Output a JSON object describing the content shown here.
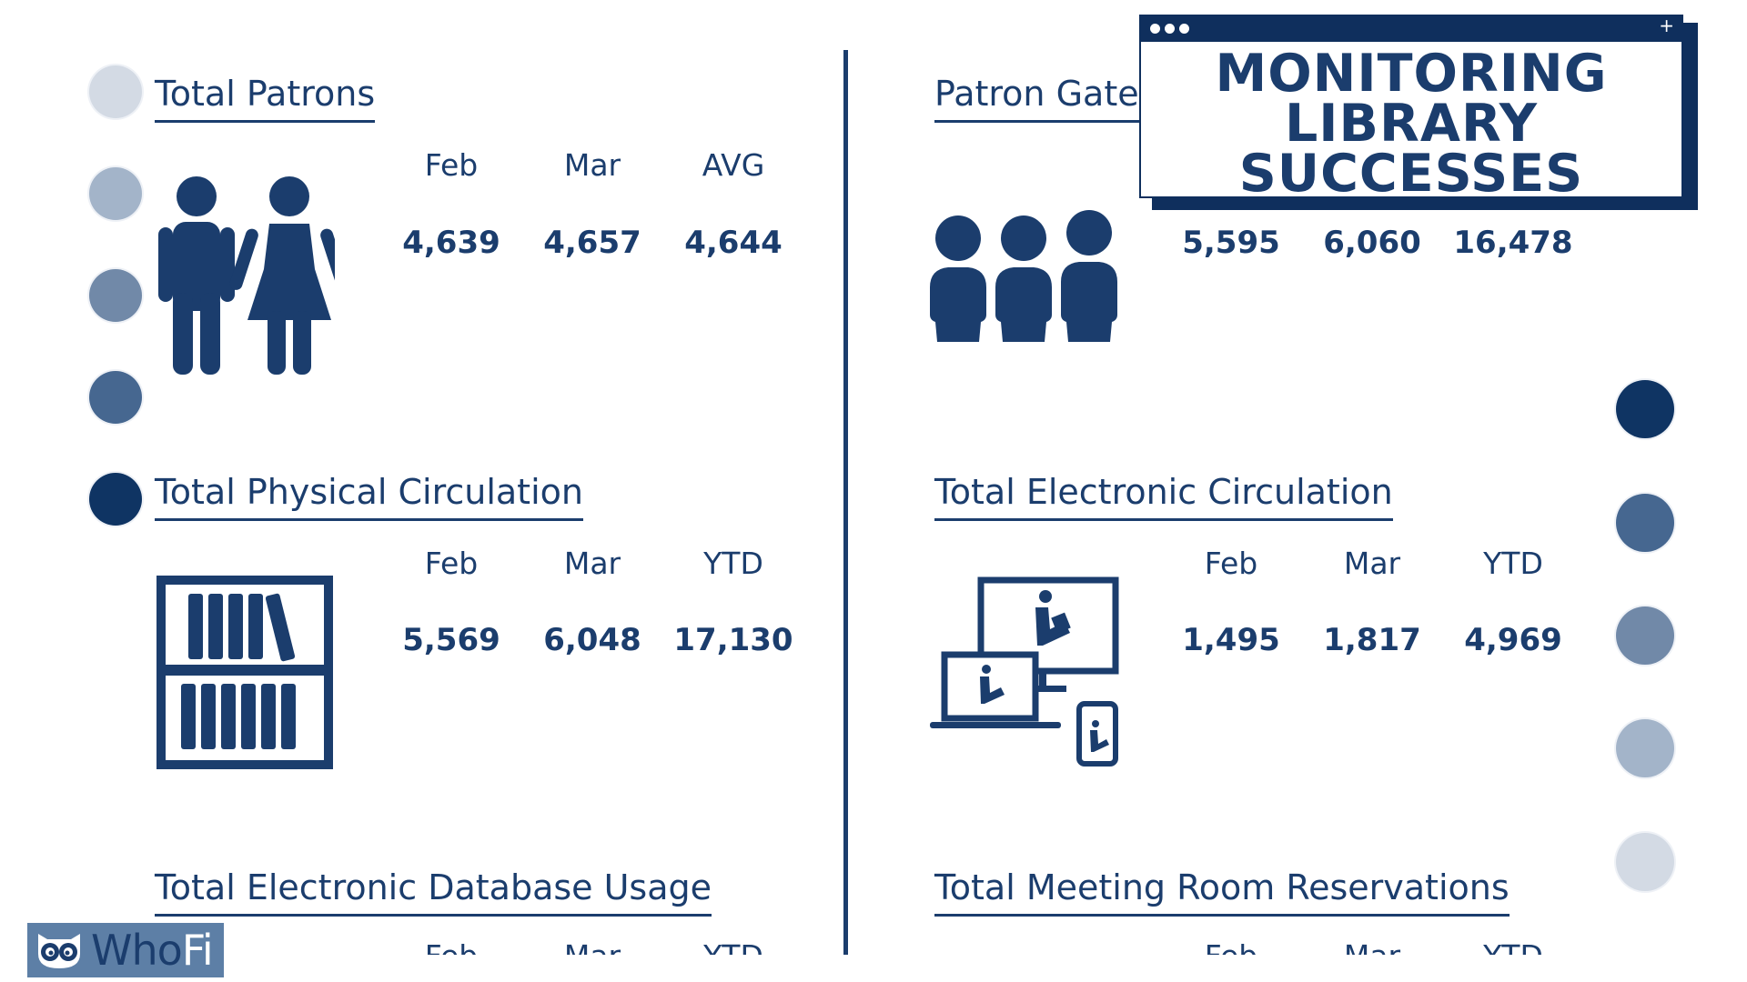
{
  "banner": {
    "line1": "MONITORING",
    "line2": "LIBRARY",
    "line3": "SUCCESSES",
    "plus": "+"
  },
  "sections": {
    "patrons": {
      "title": "Total Patrons",
      "headers": [
        "Feb",
        "Mar",
        "AVG"
      ],
      "values": [
        "4,639",
        "4,657",
        "4,644"
      ]
    },
    "gate": {
      "title": "Patron Gate",
      "values": [
        "5,595",
        "6,060",
        "16,478"
      ]
    },
    "physical": {
      "title": "Total Physical Circulation",
      "headers": [
        "Feb",
        "Mar",
        "YTD"
      ],
      "values": [
        "5,569",
        "6,048",
        "17,130"
      ]
    },
    "electronic": {
      "title": "Total Electronic Circulation",
      "headers": [
        "Feb",
        "Mar",
        "YTD"
      ],
      "values": [
        "1,495",
        "1,817",
        "4,969"
      ]
    },
    "database": {
      "title": "Total Electronic Database Usage",
      "headers": [
        "Feb",
        "Mar",
        "YTD"
      ]
    },
    "meeting": {
      "title": "Total Meeting Room Reservations",
      "headers": [
        "Feb",
        "Mar",
        "YTD"
      ]
    }
  },
  "logo": {
    "who": "Who",
    "fi": "Fi"
  },
  "icons": {
    "people": "people-icon",
    "group": "group-icon",
    "bookshelf": "bookshelf-icon",
    "devices": "devices-reading-icon",
    "owl": "owl-icon"
  },
  "colors": {
    "navy": "#1b3d6d",
    "dark_navy": "#0f2f5d",
    "dot_shades": [
      "#d3dae4",
      "#a3b4c9",
      "#7189a8",
      "#466790",
      "#0f3463"
    ],
    "logo_bg": "#5d7fa6"
  }
}
